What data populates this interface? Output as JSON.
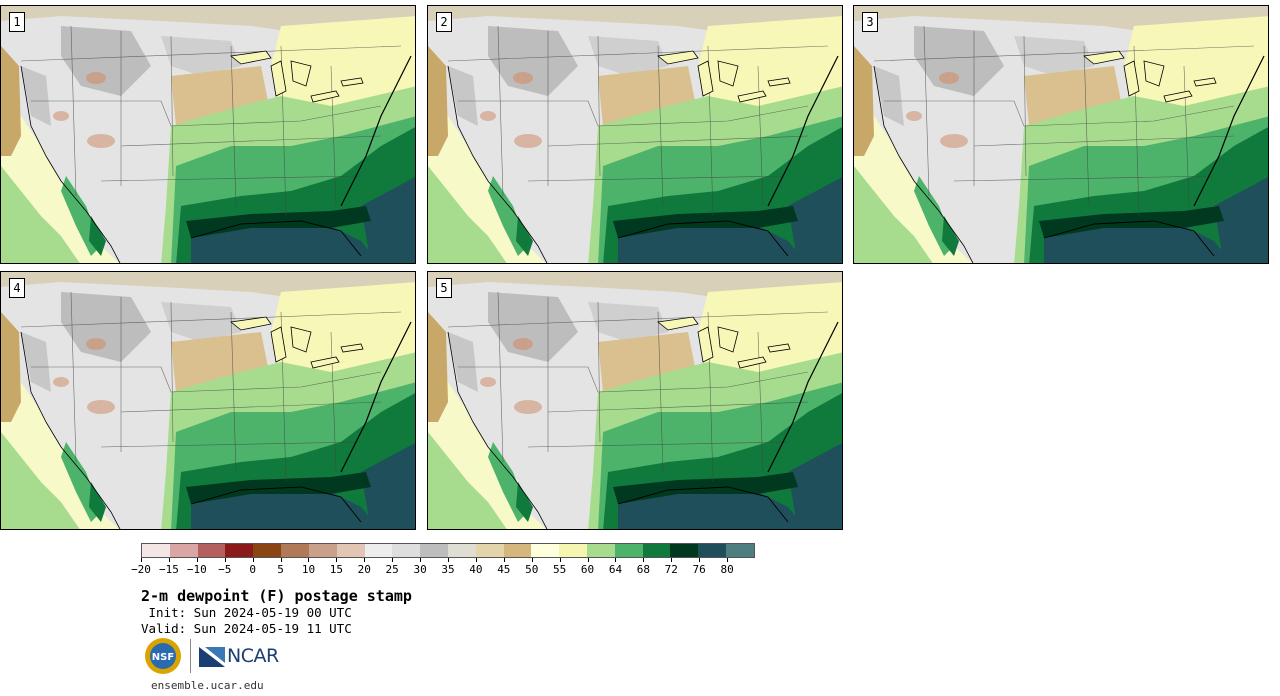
{
  "panels": [
    {
      "label": "1"
    },
    {
      "label": "2"
    },
    {
      "label": "3"
    },
    {
      "label": "4"
    },
    {
      "label": "5"
    }
  ],
  "colorbar": {
    "colors": [
      "#f5e6e6",
      "#d9a5a5",
      "#b5605f",
      "#8b1a1a",
      "#8b4513",
      "#b07a58",
      "#c9a089",
      "#e2c6b4",
      "#ededed",
      "#dedede",
      "#bdbdbd",
      "#e0ddd2",
      "#e3d5a9",
      "#d4b77c",
      "#ffffdd",
      "#f5f7b0",
      "#a7dc8e",
      "#4db36a",
      "#0f7a3c",
      "#00391f",
      "#1f4f5a",
      "#4e7f80"
    ],
    "tick_labels": [
      "−20",
      "−15",
      "−10",
      "−5",
      "0",
      "5",
      "10",
      "15",
      "20",
      "25",
      "30",
      "35",
      "40",
      "45",
      "50",
      "55",
      "60",
      "64",
      "68",
      "72",
      "76",
      "80"
    ]
  },
  "title": "2-m dewpoint (F) postage stamp",
  "init": " Init: Sun 2024-05-19 00 UTC",
  "valid": "Valid: Sun 2024-05-19 11 UTC",
  "logos": {
    "nsf": "NSF",
    "ncar": "NCAR"
  },
  "footer": "ensemble.ucar.edu"
}
